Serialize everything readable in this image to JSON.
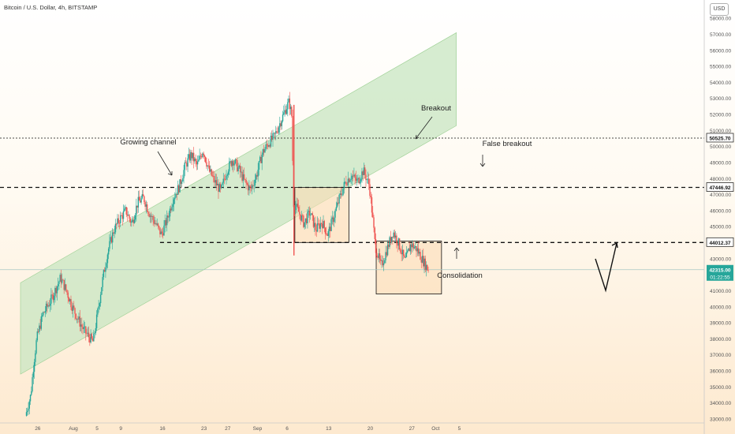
{
  "header": {
    "title": "Bitcoin / U.S. Dollar, 4h, BITSTAMP"
  },
  "currency_badge": "USD",
  "chart_data": {
    "type": "candlestick",
    "symbol": "Bitcoin / U.S. Dollar",
    "interval": "4h",
    "exchange": "BITSTAMP",
    "y_range": [
      33000,
      58500
    ],
    "y_ticks": [
      33000,
      34000,
      35000,
      36000,
      37000,
      38000,
      39000,
      40000,
      41000,
      42000,
      43000,
      44000,
      45000,
      46000,
      47000,
      48000,
      49000,
      50000,
      51000,
      52000,
      53000,
      54000,
      55000,
      56000,
      57000,
      58000
    ],
    "x_ticks": [
      {
        "label": "26",
        "day": -6
      },
      {
        "label": "Aug",
        "day": 0
      },
      {
        "label": "5",
        "day": 4
      },
      {
        "label": "9",
        "day": 8
      },
      {
        "label": "16",
        "day": 15
      },
      {
        "label": "23",
        "day": 22
      },
      {
        "label": "27",
        "day": 26
      },
      {
        "label": "Sep",
        "day": 31
      },
      {
        "label": "6",
        "day": 36
      },
      {
        "label": "13",
        "day": 43
      },
      {
        "label": "20",
        "day": 50
      },
      {
        "label": "27",
        "day": 57
      },
      {
        "label": "Oct",
        "day": 61
      },
      {
        "label": "5",
        "day": 65
      }
    ],
    "price_path": [
      [
        -7.9,
        33200
      ],
      [
        -7.0,
        34500
      ],
      [
        -6.5,
        36500
      ],
      [
        -6.0,
        38000
      ],
      [
        -5.0,
        39500
      ],
      [
        -3.5,
        40500
      ],
      [
        -2.0,
        41800
      ],
      [
        -1.0,
        41000
      ],
      [
        0.0,
        40000
      ],
      [
        1.0,
        39200
      ],
      [
        2.0,
        38500
      ],
      [
        3.5,
        37800
      ],
      [
        4.0,
        39000
      ],
      [
        5.0,
        41500
      ],
      [
        6.0,
        43500
      ],
      [
        7.0,
        44800
      ],
      [
        8.0,
        45500
      ],
      [
        9.0,
        46000
      ],
      [
        10.0,
        45200
      ],
      [
        11.0,
        46500
      ],
      [
        12.0,
        46800
      ],
      [
        13.0,
        45800
      ],
      [
        14.0,
        45200
      ],
      [
        15.0,
        44500
      ],
      [
        16.0,
        45500
      ],
      [
        17.0,
        46800
      ],
      [
        18.0,
        47500
      ],
      [
        19.0,
        48800
      ],
      [
        20.0,
        49500
      ],
      [
        21.0,
        48800
      ],
      [
        22.0,
        49800
      ],
      [
        23.0,
        48500
      ],
      [
        24.0,
        47800
      ],
      [
        25.0,
        47200
      ],
      [
        26.0,
        48500
      ],
      [
        27.0,
        49200
      ],
      [
        28.0,
        48600
      ],
      [
        29.0,
        47800
      ],
      [
        30.0,
        47300
      ],
      [
        31.0,
        48200
      ],
      [
        32.0,
        49600
      ],
      [
        33.0,
        50200
      ],
      [
        34.0,
        50600
      ],
      [
        35.0,
        51500
      ],
      [
        36.0,
        52400
      ],
      [
        36.5,
        52800
      ],
      [
        37.0,
        51800
      ],
      [
        37.2,
        46500
      ],
      [
        38.0,
        46000
      ],
      [
        39.0,
        45200
      ],
      [
        40.0,
        45900
      ],
      [
        41.0,
        44800
      ],
      [
        42.0,
        45300
      ],
      [
        43.0,
        44500
      ],
      [
        44.0,
        45600
      ],
      [
        45.0,
        46800
      ],
      [
        46.0,
        47800
      ],
      [
        47.0,
        48200
      ],
      [
        48.0,
        47800
      ],
      [
        49.0,
        48500
      ],
      [
        50.0,
        47600
      ],
      [
        50.5,
        45800
      ],
      [
        51.0,
        43800
      ],
      [
        52.0,
        42500
      ],
      [
        53.0,
        43600
      ],
      [
        54.0,
        44700
      ],
      [
        55.0,
        43900
      ],
      [
        56.0,
        42800
      ],
      [
        57.0,
        43900
      ],
      [
        58.0,
        43600
      ],
      [
        59.0,
        42900
      ],
      [
        59.9,
        42315
      ]
    ],
    "last_price": "42315.00",
    "countdown": "01:22:55",
    "horizontal_levels": [
      {
        "price": "50525.70",
        "value": 50525.7,
        "style": "dotted"
      },
      {
        "price": "47446.92",
        "value": 47446.92,
        "style": "dashed"
      },
      {
        "price": "44012.37",
        "value": 44012.37,
        "style": "dashed"
      }
    ],
    "annotations": {
      "channel": "Growing channel",
      "breakout": "Breakout",
      "false_breakout": "False breakout",
      "consolidation": "Consolidation"
    },
    "grid": false,
    "colors": {
      "up": "#26a69a",
      "down": "#ef5350",
      "channel_fill": "#c8e6c1",
      "box_fill": "#fbdcb5",
      "last_price_bg": "#26a69a",
      "level_label_bg": "#ffffff"
    }
  }
}
